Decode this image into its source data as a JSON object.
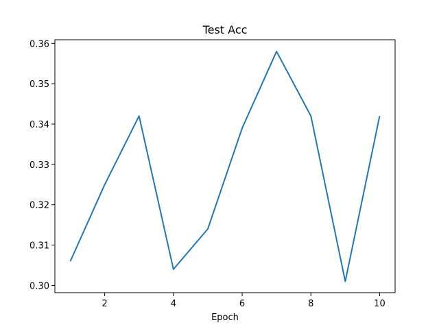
{
  "chart_data": {
    "type": "line",
    "title": "Test Acc",
    "xlabel": "Epoch",
    "ylabel": "",
    "x": [
      1,
      2,
      3,
      4,
      5,
      6,
      7,
      8,
      9,
      10
    ],
    "series": [
      {
        "values": [
          0.306,
          0.325,
          0.342,
          0.304,
          0.314,
          0.339,
          0.358,
          0.342,
          0.301,
          0.342
        ],
        "color": "#1f77b4"
      }
    ],
    "xlim": [
      0.55,
      10.45
    ],
    "ylim": [
      0.2982,
      0.3609
    ],
    "xticks": [
      2,
      4,
      6,
      8,
      10
    ],
    "xtick_labels": [
      "2",
      "4",
      "6",
      "8",
      "10"
    ],
    "yticks": [
      0.3,
      0.31,
      0.32,
      0.33,
      0.34,
      0.35,
      0.36
    ],
    "ytick_labels": [
      "0.30",
      "0.31",
      "0.32",
      "0.33",
      "0.34",
      "0.35",
      "0.36"
    ],
    "grid": false,
    "legend": false
  }
}
